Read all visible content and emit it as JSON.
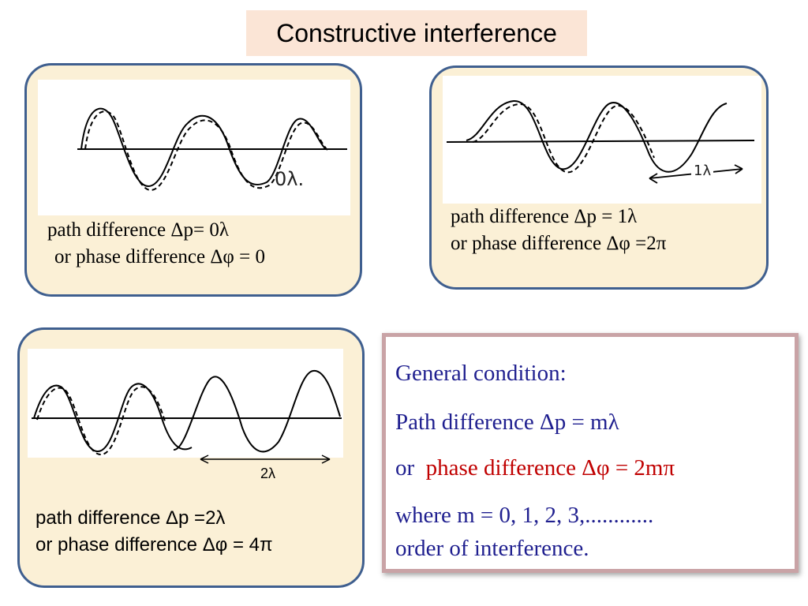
{
  "title": "Constructive interference",
  "panels": [
    {
      "sketch_note": "0λ.",
      "caption_line1": "path difference Δp= 0λ",
      "caption_line2": "or phase difference Δφ = 0"
    },
    {
      "sketch_note": "1λ",
      "caption_line1": "path difference Δp = 1λ",
      "caption_line2": "or phase difference Δφ =2π"
    },
    {
      "arrow_label": "2λ",
      "caption_line1": "path difference Δp =2λ",
      "caption_line2": "or phase difference Δφ = 4π"
    }
  ],
  "general": {
    "heading": "General condition:",
    "path_line": "Path difference Δp = mλ",
    "phase_or": "or",
    "phase_line": "phase difference Δφ = 2mπ",
    "where_line": "where m = 0, 1, 2, 3,............",
    "order_line": "order of interference."
  },
  "colors": {
    "panel_border": "#3f5f8f",
    "panel_fill": "#fbf0d6",
    "title_fill": "#fbe5d6",
    "general_text": "#1f1f8f",
    "phase_red": "#c00000"
  }
}
